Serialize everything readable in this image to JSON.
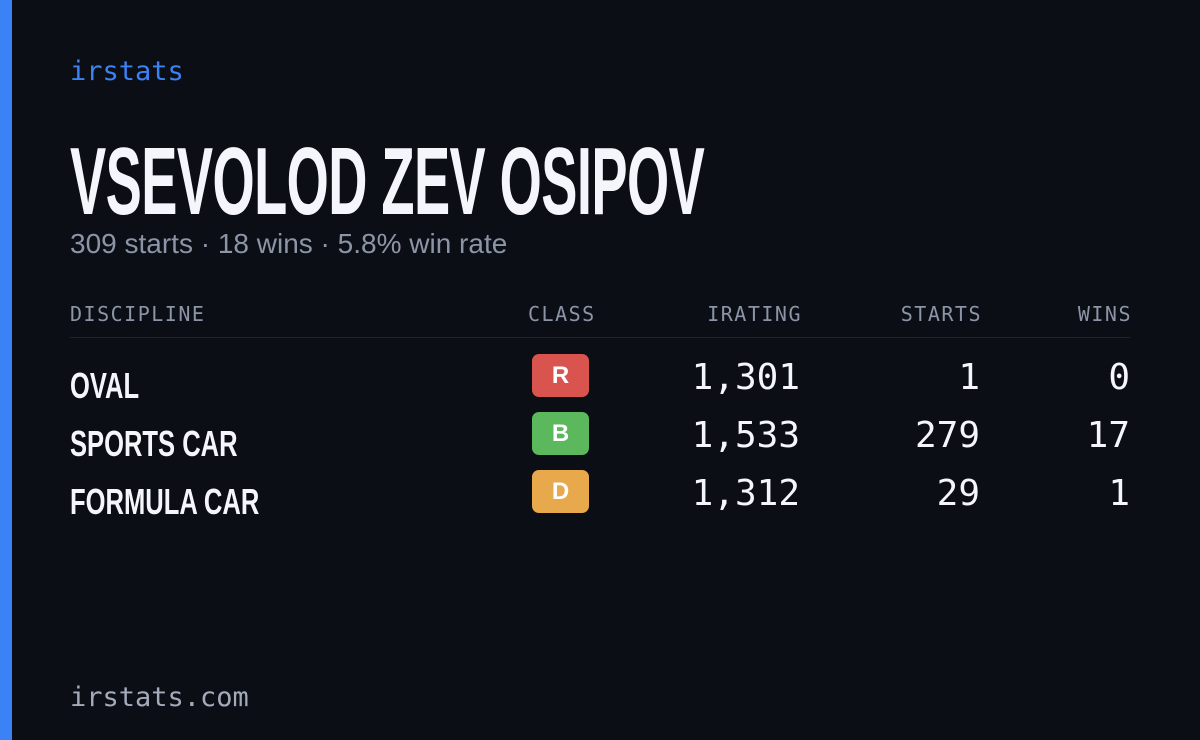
{
  "brand": "irstats",
  "title": "VSEVOLOD ZEV OSIPOV",
  "subtitle": "309 starts · 18 wins · 5.8% win rate",
  "table": {
    "headers": [
      "DISCIPLINE",
      "CLASS",
      "IRATING",
      "STARTS",
      "WINS"
    ],
    "rows": [
      [
        "OVAL",
        "R",
        "1,301",
        "1",
        "0"
      ],
      [
        "SPORTS CAR",
        "B",
        "1,533",
        "279",
        "17"
      ],
      [
        "FORMULA CAR",
        "D",
        "1,312",
        "29",
        "1"
      ]
    ]
  },
  "footer": "irstats.com"
}
